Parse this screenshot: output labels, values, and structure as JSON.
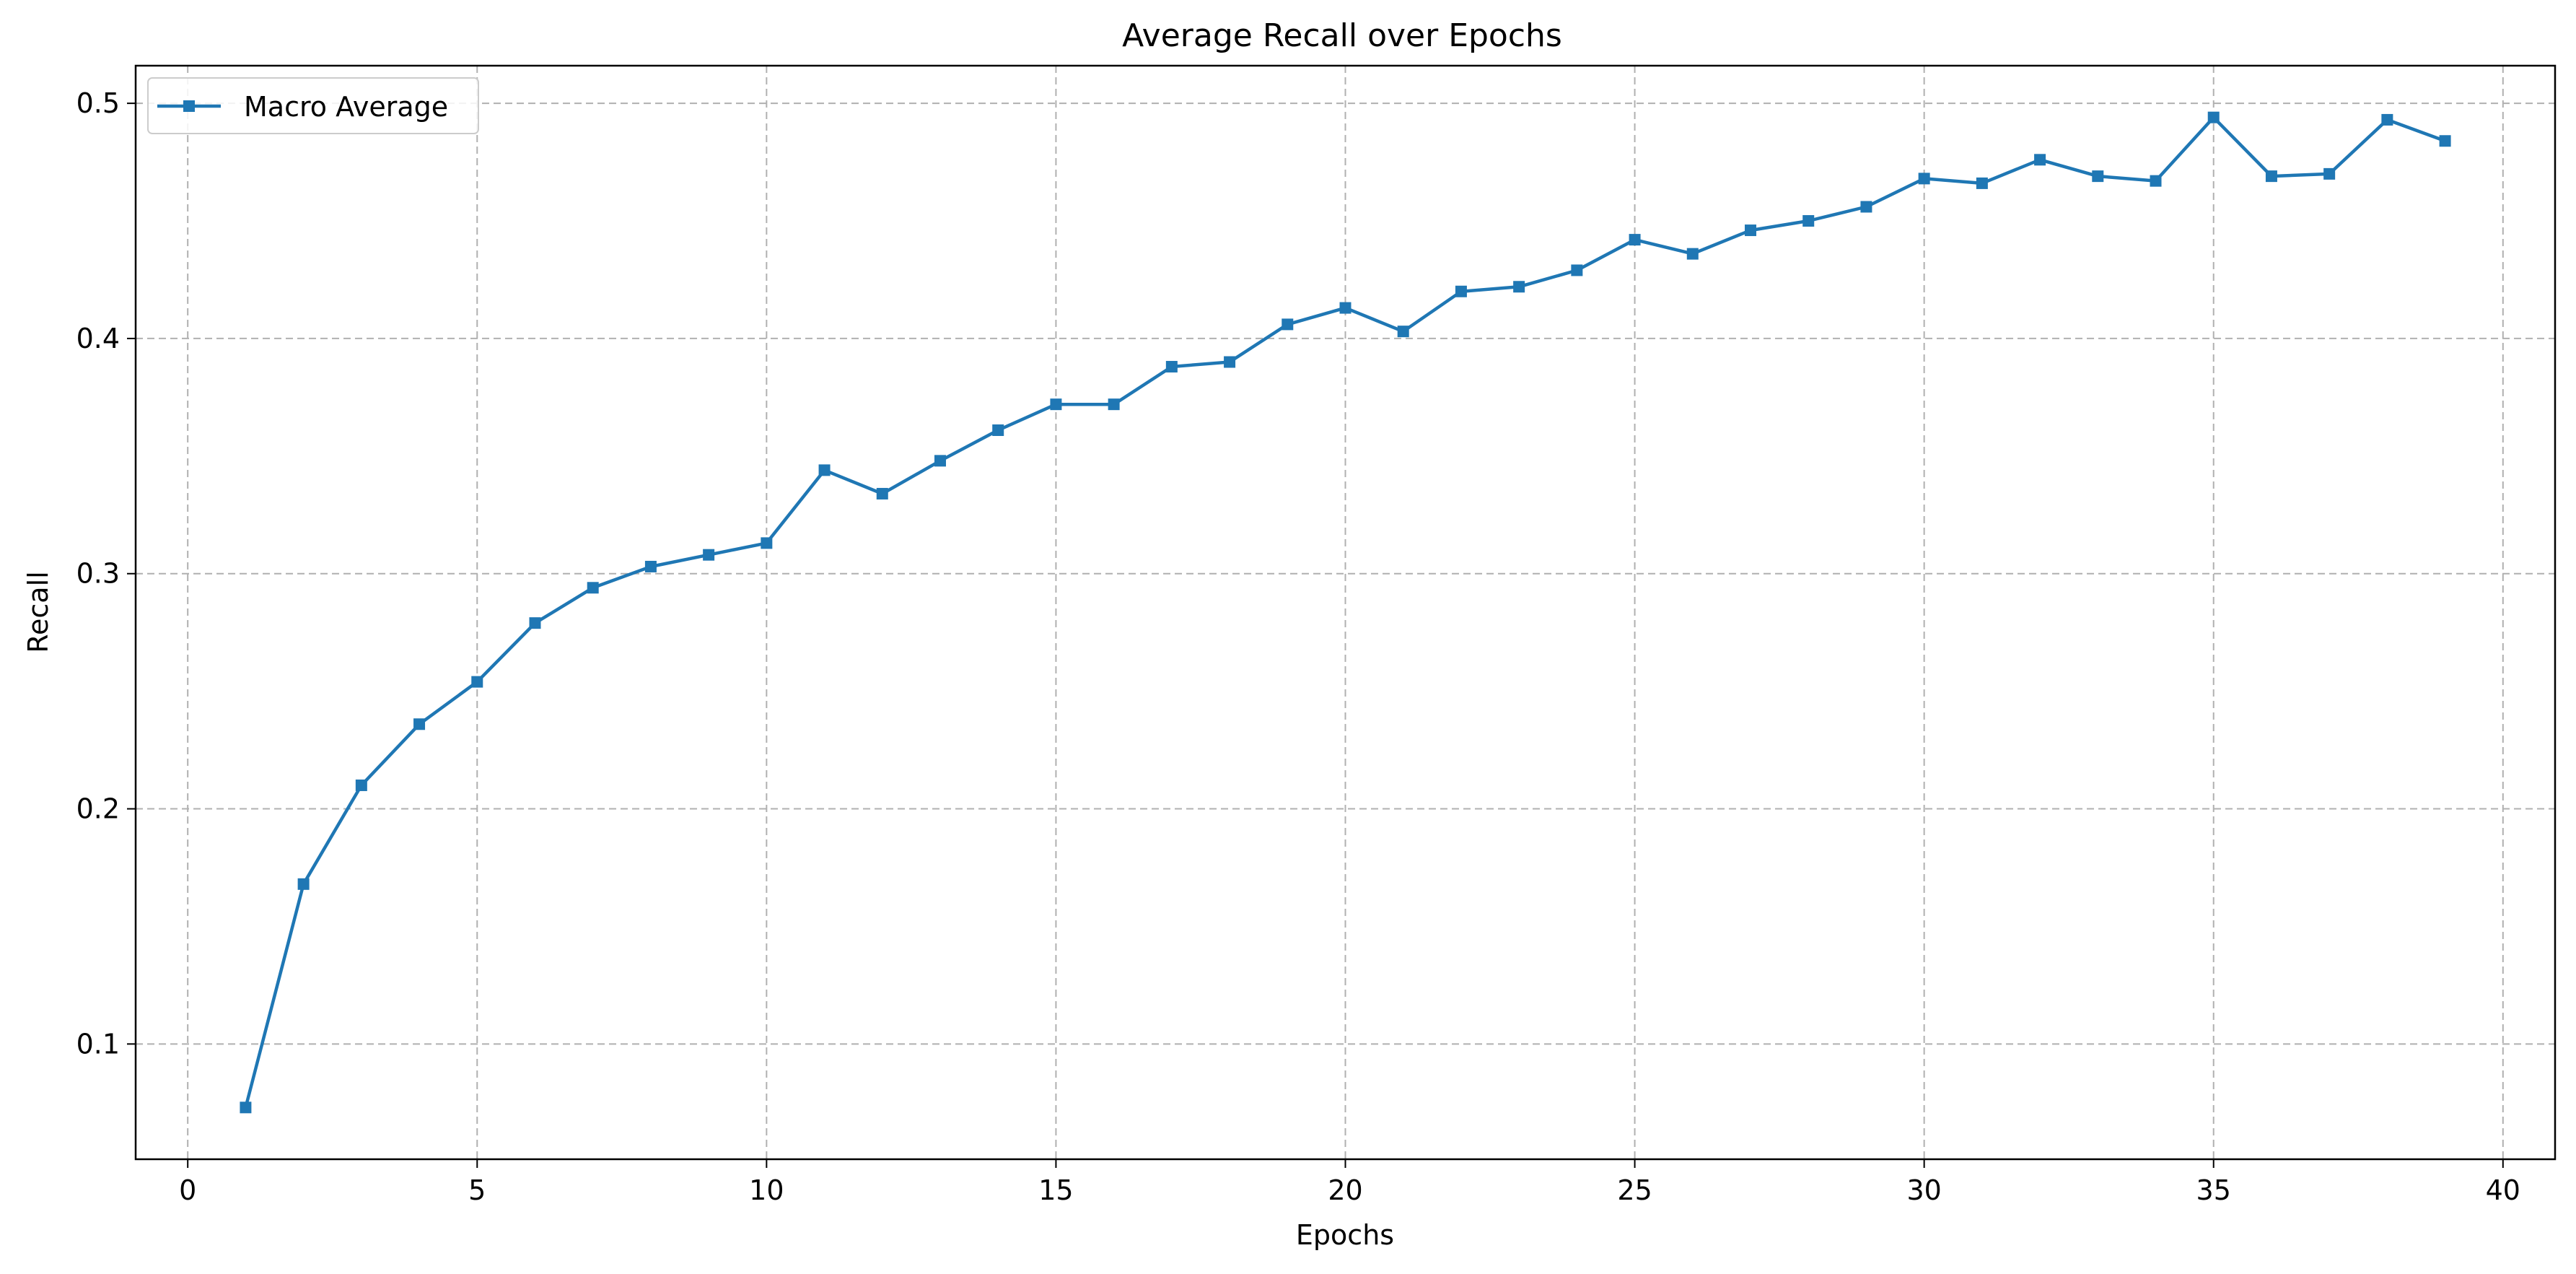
{
  "chart_data": {
    "type": "line",
    "title": "Average Recall over Epochs",
    "xlabel": "Epochs",
    "ylabel": "Recall",
    "xlim": [
      -0.9,
      40.9
    ],
    "ylim": [
      0.051,
      0.516
    ],
    "xticks": [
      0,
      5,
      10,
      15,
      20,
      25,
      30,
      35,
      40
    ],
    "yticks": [
      0.1,
      0.2,
      0.3,
      0.4,
      0.5
    ],
    "xtick_labels": [
      "0",
      "5",
      "10",
      "15",
      "20",
      "25",
      "30",
      "35",
      "40"
    ],
    "ytick_labels": [
      "0.1",
      "0.2",
      "0.3",
      "0.4",
      "0.5"
    ],
    "grid": true,
    "legend_position": "top-left",
    "series": [
      {
        "name": "Macro Average",
        "color": "#1f77b4",
        "marker": "square",
        "x": [
          1,
          2,
          3,
          4,
          5,
          6,
          7,
          8,
          9,
          10,
          11,
          12,
          13,
          14,
          15,
          16,
          17,
          18,
          19,
          20,
          21,
          22,
          23,
          24,
          25,
          26,
          27,
          28,
          29,
          30,
          31,
          32,
          33,
          34,
          35,
          36,
          37,
          38,
          39
        ],
        "y": [
          0.073,
          0.168,
          0.21,
          0.236,
          0.254,
          0.279,
          0.294,
          0.303,
          0.308,
          0.313,
          0.344,
          0.334,
          0.348,
          0.361,
          0.372,
          0.372,
          0.388,
          0.39,
          0.406,
          0.413,
          0.403,
          0.42,
          0.422,
          0.429,
          0.442,
          0.436,
          0.446,
          0.45,
          0.456,
          0.468,
          0.466,
          0.476,
          0.469,
          0.467,
          0.494,
          0.469,
          0.47,
          0.493,
          0.484
        ]
      }
    ]
  }
}
